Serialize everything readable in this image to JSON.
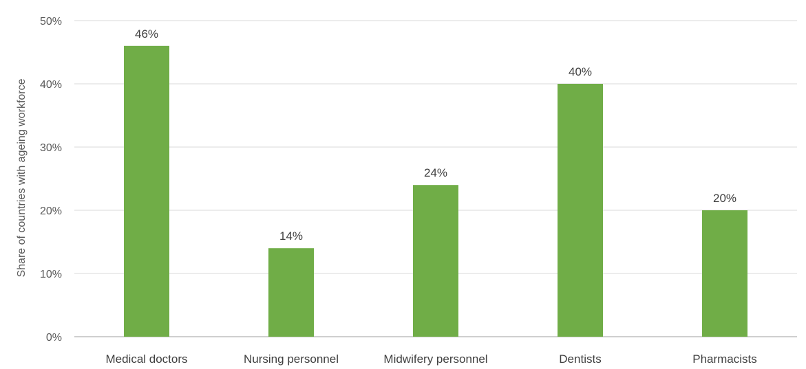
{
  "chart_data": {
    "type": "bar",
    "categories": [
      "Medical doctors",
      "Nursing personnel",
      "Midwifery personnel",
      "Dentists",
      "Pharmacists"
    ],
    "values": [
      46,
      14,
      24,
      40,
      20
    ],
    "data_labels": [
      "46%",
      "14%",
      "24%",
      "40%",
      "20%"
    ],
    "title": "",
    "xlabel": "",
    "ylabel": "Share of countries with ageing workforce",
    "ylim": [
      0,
      50
    ],
    "yticks": [
      0,
      10,
      20,
      30,
      40,
      50
    ],
    "ytick_labels": [
      "0%",
      "10%",
      "20%",
      "30%",
      "40%",
      "50%"
    ],
    "grid": true,
    "legend": false,
    "bar_color": "#70ad47"
  }
}
